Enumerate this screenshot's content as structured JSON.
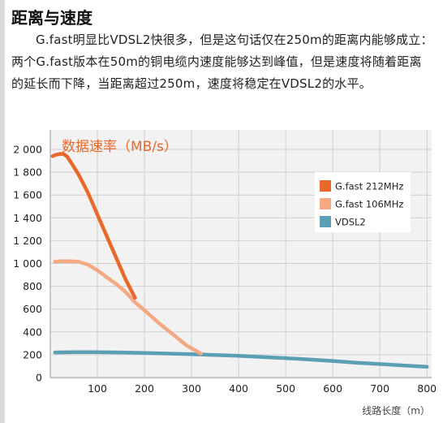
{
  "article": {
    "title": "距离与速度",
    "paragraph": "G.fast明显比VDSL2快很多，但是这句话仅在250m的距离内能够成立：两个G.fast版本在50m的铜电缆内速度能够达到峰值，但是速度将随着距离的延长而下降，当距离超过250m，速度将稳定在VDSL2的水平。"
  },
  "chart_data": {
    "type": "line",
    "title": "数据速率（MB/s）",
    "xlabel": "线路长度（m）",
    "ylabel": "",
    "xlim": [
      0,
      810
    ],
    "ylim": [
      0,
      2000
    ],
    "xticks": [
      100,
      200,
      300,
      400,
      500,
      600,
      700,
      800
    ],
    "xtick_labels": [
      "100",
      "200",
      "300",
      "400",
      "500",
      "600",
      "700",
      "800"
    ],
    "yticks": [
      0,
      200,
      400,
      600,
      800,
      1000,
      1200,
      1400,
      1600,
      1800,
      2000
    ],
    "ytick_labels": [
      "0",
      "200",
      "400",
      "600",
      "800",
      "1 000",
      "1 200",
      "1 400",
      "1 600",
      "1 800",
      "2 000"
    ],
    "grid": true,
    "legend_position": "right",
    "series": [
      {
        "name": "G.fast 212MHz",
        "color": "#e8692a",
        "x": [
          5,
          10,
          20,
          28,
          35,
          45,
          60,
          80,
          100,
          120,
          140,
          160,
          180
        ],
        "y": [
          1940,
          1950,
          1960,
          1960,
          1940,
          1880,
          1780,
          1620,
          1430,
          1240,
          1050,
          860,
          700
        ]
      },
      {
        "name": "G.fast 106MHz",
        "color": "#f4a983",
        "x": [
          10,
          20,
          40,
          60,
          80,
          100,
          120,
          140,
          160,
          180,
          200,
          230,
          260,
          290,
          320
        ],
        "y": [
          1015,
          1020,
          1020,
          1015,
          990,
          940,
          880,
          820,
          750,
          660,
          590,
          480,
          380,
          280,
          210
        ]
      },
      {
        "name": "VDSL2",
        "color": "#5a9fb3",
        "x": [
          10,
          50,
          100,
          150,
          200,
          250,
          300,
          350,
          400,
          450,
          500,
          550,
          600,
          650,
          700,
          750,
          800
        ],
        "y": [
          220,
          222,
          222,
          220,
          215,
          210,
          205,
          198,
          190,
          180,
          170,
          158,
          145,
          130,
          118,
          106,
          95
        ]
      }
    ]
  }
}
